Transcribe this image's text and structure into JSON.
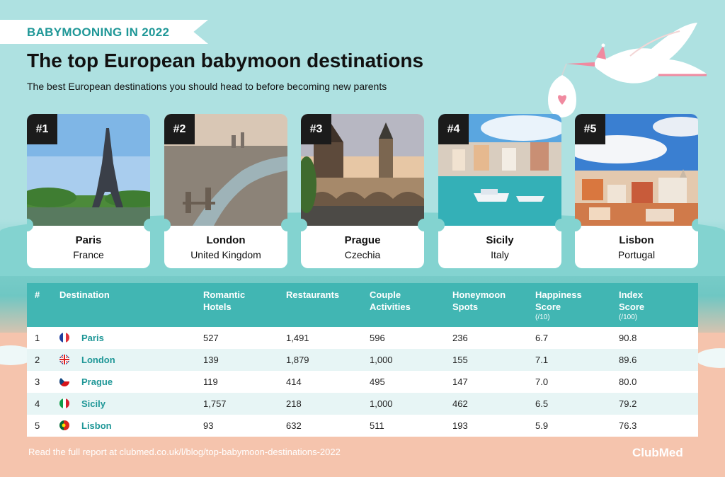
{
  "header": {
    "ribbon": "BABYMOONING IN 2022",
    "title": "The top European babymoon destinations",
    "subtitle": "The best European destinations you should head to before becoming new parents"
  },
  "cards": [
    {
      "rank": "#1",
      "city": "Paris",
      "country": "France"
    },
    {
      "rank": "#2",
      "city": "London",
      "country": "United Kingdom"
    },
    {
      "rank": "#3",
      "city": "Prague",
      "country": "Czechia"
    },
    {
      "rank": "#4",
      "city": "Sicily",
      "country": "Italy"
    },
    {
      "rank": "#5",
      "city": "Lisbon",
      "country": "Portugal"
    }
  ],
  "table": {
    "headers": {
      "rank": "#",
      "destination": "Destination",
      "hotels": "Romantic Hotels",
      "restaurants": "Restaurants",
      "activities": "Couple Activities",
      "spots": "Honeymoon Spots",
      "happiness": "Happiness Score",
      "happiness_unit": "(/10)",
      "index": "Index Score",
      "index_unit": "(/100)"
    },
    "rows": [
      {
        "rank": "1",
        "destination": "Paris",
        "hotels": "527",
        "restaurants": "1,491",
        "activities": "596",
        "spots": "236",
        "happiness": "6.7",
        "index": "90.8"
      },
      {
        "rank": "2",
        "destination": "London",
        "hotels": "139",
        "restaurants": "1,879",
        "activities": "1,000",
        "spots": "155",
        "happiness": "7.1",
        "index": "89.6"
      },
      {
        "rank": "3",
        "destination": "Prague",
        "hotels": "119",
        "restaurants": "414",
        "activities": "495",
        "spots": "147",
        "happiness": "7.0",
        "index": "80.0"
      },
      {
        "rank": "4",
        "destination": "Sicily",
        "hotels": "1,757",
        "restaurants": "218",
        "activities": "1,000",
        "spots": "462",
        "happiness": "6.5",
        "index": "79.2"
      },
      {
        "rank": "5",
        "destination": "Lisbon",
        "hotels": "93",
        "restaurants": "632",
        "activities": "511",
        "spots": "193",
        "happiness": "5.9",
        "index": "76.3"
      }
    ]
  },
  "footer": {
    "text": "Read the full report at clubmed.co.uk/l/blog/top-babymoon-destinations-2022",
    "brand": "ClubMed"
  },
  "icons": {
    "stork": "stork-carrying-baby-icon",
    "flags": [
      "france-flag-icon",
      "uk-flag-icon",
      "czech-flag-icon",
      "italy-flag-icon",
      "portugal-flag-icon"
    ]
  },
  "colors": {
    "accent": "#41b6b3",
    "link": "#1f9797",
    "background": "#aee1e1"
  }
}
